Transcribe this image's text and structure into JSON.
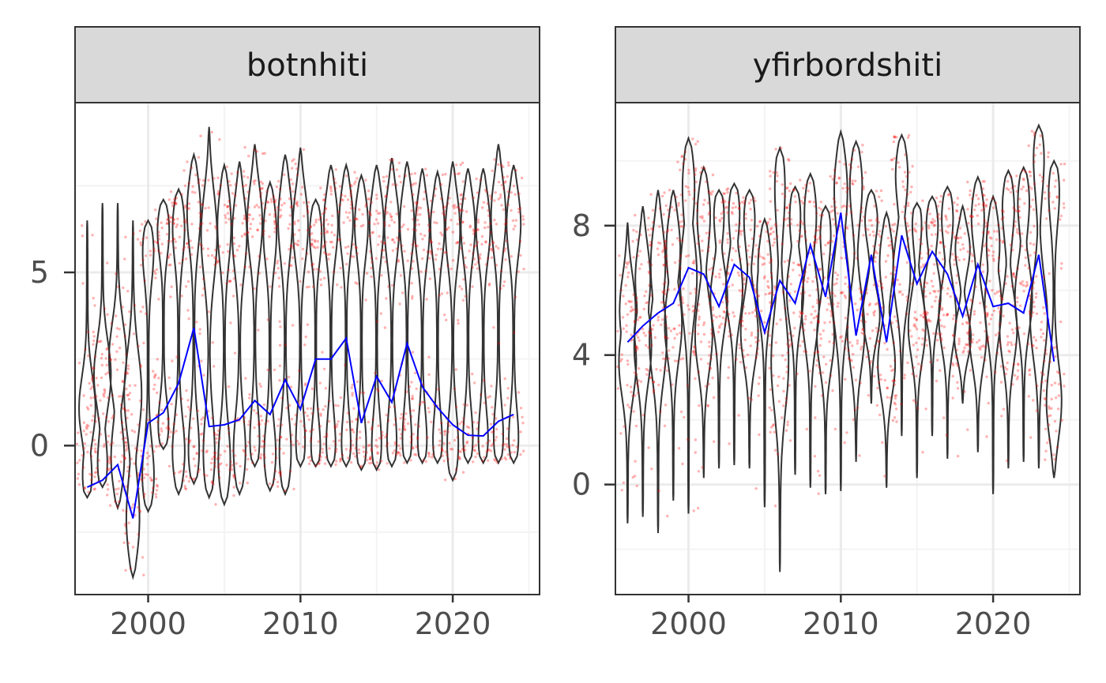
{
  "chart_data": [
    {
      "type": "violin",
      "panel_label": "botnhiti",
      "xlim": [
        1995.2,
        2025.7
      ],
      "ylim": [
        -4.3,
        9.9
      ],
      "x_ticks": [
        2000,
        2010,
        2020
      ],
      "y_ticks": [
        0,
        5
      ],
      "grid": true,
      "series": [
        {
          "kind": "violins with jittered points (red)",
          "x": [
            1996,
            1997,
            1998,
            1999,
            2000,
            2001,
            2002,
            2003,
            2004,
            2005,
            2006,
            2007,
            2008,
            2009,
            2010,
            2011,
            2012,
            2013,
            2014,
            2015,
            2016,
            2017,
            2018,
            2019,
            2020,
            2021,
            2022,
            2023,
            2024
          ],
          "min": [
            -1.5,
            -1.2,
            -1.8,
            -3.8,
            -1.9,
            -0.1,
            -1.4,
            -1.1,
            -1.5,
            -1.7,
            -1.4,
            -0.6,
            -1.3,
            -1.4,
            -0.6,
            -0.6,
            -0.6,
            -0.6,
            -0.7,
            -0.7,
            -0.6,
            -0.5,
            -0.5,
            -0.5,
            -1.0,
            -0.5,
            -0.5,
            -0.5,
            -0.5
          ],
          "max": [
            6.5,
            7.0,
            7.0,
            6.5,
            6.5,
            7.1,
            7.4,
            8.4,
            9.2,
            8.1,
            8.2,
            8.7,
            7.6,
            8.4,
            8.6,
            7.1,
            8.1,
            8.1,
            7.8,
            8.1,
            8.3,
            8.2,
            8.0,
            7.9,
            8.2,
            8.0,
            8.0,
            8.7,
            8.1
          ],
          "lower_mode": [
            -1.4,
            -1.0,
            -0.6,
            -2.4,
            -1.2,
            0.2,
            -0.5,
            -0.6,
            -0.7,
            -0.8,
            -0.5,
            -0.4,
            -0.6,
            -0.6,
            -0.5,
            -0.5,
            -0.5,
            -0.5,
            -0.5,
            -0.5,
            -0.4,
            -0.4,
            -0.4,
            -0.4,
            -0.4,
            -0.3,
            -0.3,
            -0.3,
            -0.3
          ],
          "upper_mode": [
            1.0,
            2.0,
            2.5,
            1.5,
            6.0,
            6.5,
            6.6,
            7.0,
            6.2,
            6.6,
            6.3,
            6.6,
            6.4,
            6.7,
            6.5,
            6.4,
            6.6,
            6.7,
            6.6,
            6.6,
            6.5,
            6.6,
            6.4,
            6.5,
            6.4,
            6.5,
            6.5,
            6.8,
            6.6
          ]
        },
        {
          "kind": "line (blue)",
          "x": [
            1996,
            1997,
            1998,
            1999,
            2000,
            2001,
            2002,
            2003,
            2004,
            2005,
            2006,
            2007,
            2008,
            2009,
            2010,
            2011,
            2012,
            2013,
            2014,
            2015,
            2016,
            2017,
            2018,
            2019,
            2020,
            2021,
            2022,
            2023,
            2024
          ],
          "y": [
            -1.2,
            -1.0,
            -0.55,
            -2.1,
            0.65,
            0.95,
            1.8,
            3.4,
            0.55,
            0.6,
            0.75,
            1.3,
            0.9,
            1.9,
            1.05,
            2.5,
            2.5,
            3.1,
            0.65,
            2.0,
            1.25,
            2.95,
            1.7,
            1.1,
            0.6,
            0.3,
            0.28,
            0.7,
            0.9
          ]
        }
      ]
    },
    {
      "type": "violin",
      "panel_label": "yfirbordshiti",
      "xlim": [
        1995.2,
        2025.7
      ],
      "ylim": [
        -3.4,
        11.8
      ],
      "x_ticks": [
        2000,
        2010,
        2020
      ],
      "y_ticks": [
        0,
        4,
        8
      ],
      "grid": true,
      "series": [
        {
          "kind": "violins with jittered points (red)",
          "x": [
            1996,
            1997,
            1998,
            1999,
            2000,
            2001,
            2002,
            2003,
            2004,
            2005,
            2006,
            2007,
            2008,
            2009,
            2010,
            2011,
            2012,
            2013,
            2014,
            2015,
            2016,
            2017,
            2018,
            2019,
            2020,
            2021,
            2022,
            2023,
            2024
          ],
          "min": [
            -1.2,
            -1.0,
            -1.5,
            -0.5,
            -0.9,
            0.2,
            0.5,
            0.6,
            0.5,
            -0.7,
            -2.7,
            0.3,
            -0.1,
            -0.3,
            -0.2,
            0.7,
            2.5,
            -0.1,
            1.5,
            0.2,
            1.5,
            0.8,
            2.5,
            1.0,
            -0.3,
            0.5,
            0.7,
            0.5,
            0.2
          ],
          "max": [
            8.1,
            8.6,
            9.1,
            9.1,
            10.7,
            9.8,
            9.1,
            9.3,
            9.1,
            8.2,
            10.4,
            9.2,
            9.6,
            8.6,
            10.9,
            10.6,
            9.1,
            8.4,
            10.8,
            8.7,
            8.9,
            9.2,
            8.6,
            9.5,
            8.9,
            9.7,
            9.8,
            11.1,
            10.0
          ],
          "lower_mode": [
            3.8,
            4.3,
            4.5,
            5.0,
            6.5,
            4.6,
            5.8,
            6.1,
            4.7,
            6.2,
            3.8,
            6.0,
            5.5,
            4.6,
            6.0,
            4.7,
            5.2,
            3.7,
            6.6,
            4.9,
            5.9,
            5.2,
            4.5,
            4.6,
            5.6,
            4.8,
            5.8,
            5.1,
            2.4
          ],
          "upper_mode": [
            5.5,
            6.5,
            7.0,
            7.5,
            9.6,
            8.6,
            8.8,
            8.8,
            8.6,
            7.0,
            9.9,
            8.7,
            8.7,
            8.2,
            9.4,
            9.6,
            8.4,
            7.1,
            9.9,
            8.6,
            8.3,
            8.6,
            7.4,
            8.5,
            7.7,
            8.9,
            9.1,
            10.6,
            9.5
          ]
        },
        {
          "kind": "line (blue)",
          "x": [
            1996,
            1997,
            1998,
            1999,
            2000,
            2001,
            2002,
            2003,
            2004,
            2005,
            2006,
            2007,
            2008,
            2009,
            2010,
            2011,
            2012,
            2013,
            2014,
            2015,
            2016,
            2017,
            2018,
            2019,
            2020,
            2021,
            2022,
            2023,
            2024
          ],
          "y": [
            4.4,
            4.9,
            5.3,
            5.6,
            6.7,
            6.5,
            5.5,
            6.8,
            6.4,
            4.7,
            6.3,
            5.6,
            7.4,
            5.8,
            8.4,
            4.6,
            7.1,
            4.4,
            7.7,
            6.2,
            7.2,
            6.5,
            5.2,
            6.8,
            5.5,
            5.6,
            5.3,
            7.1,
            3.8
          ]
        }
      ]
    }
  ],
  "style": {
    "violin_outline": "#333333",
    "points": "#ff0000",
    "line": "#0000ff",
    "strip_fill": "#d9d9d9",
    "grid_major": "#ebebeb",
    "grid_minor": "#f4f4f4",
    "axis_text": "#4d4d4d"
  }
}
